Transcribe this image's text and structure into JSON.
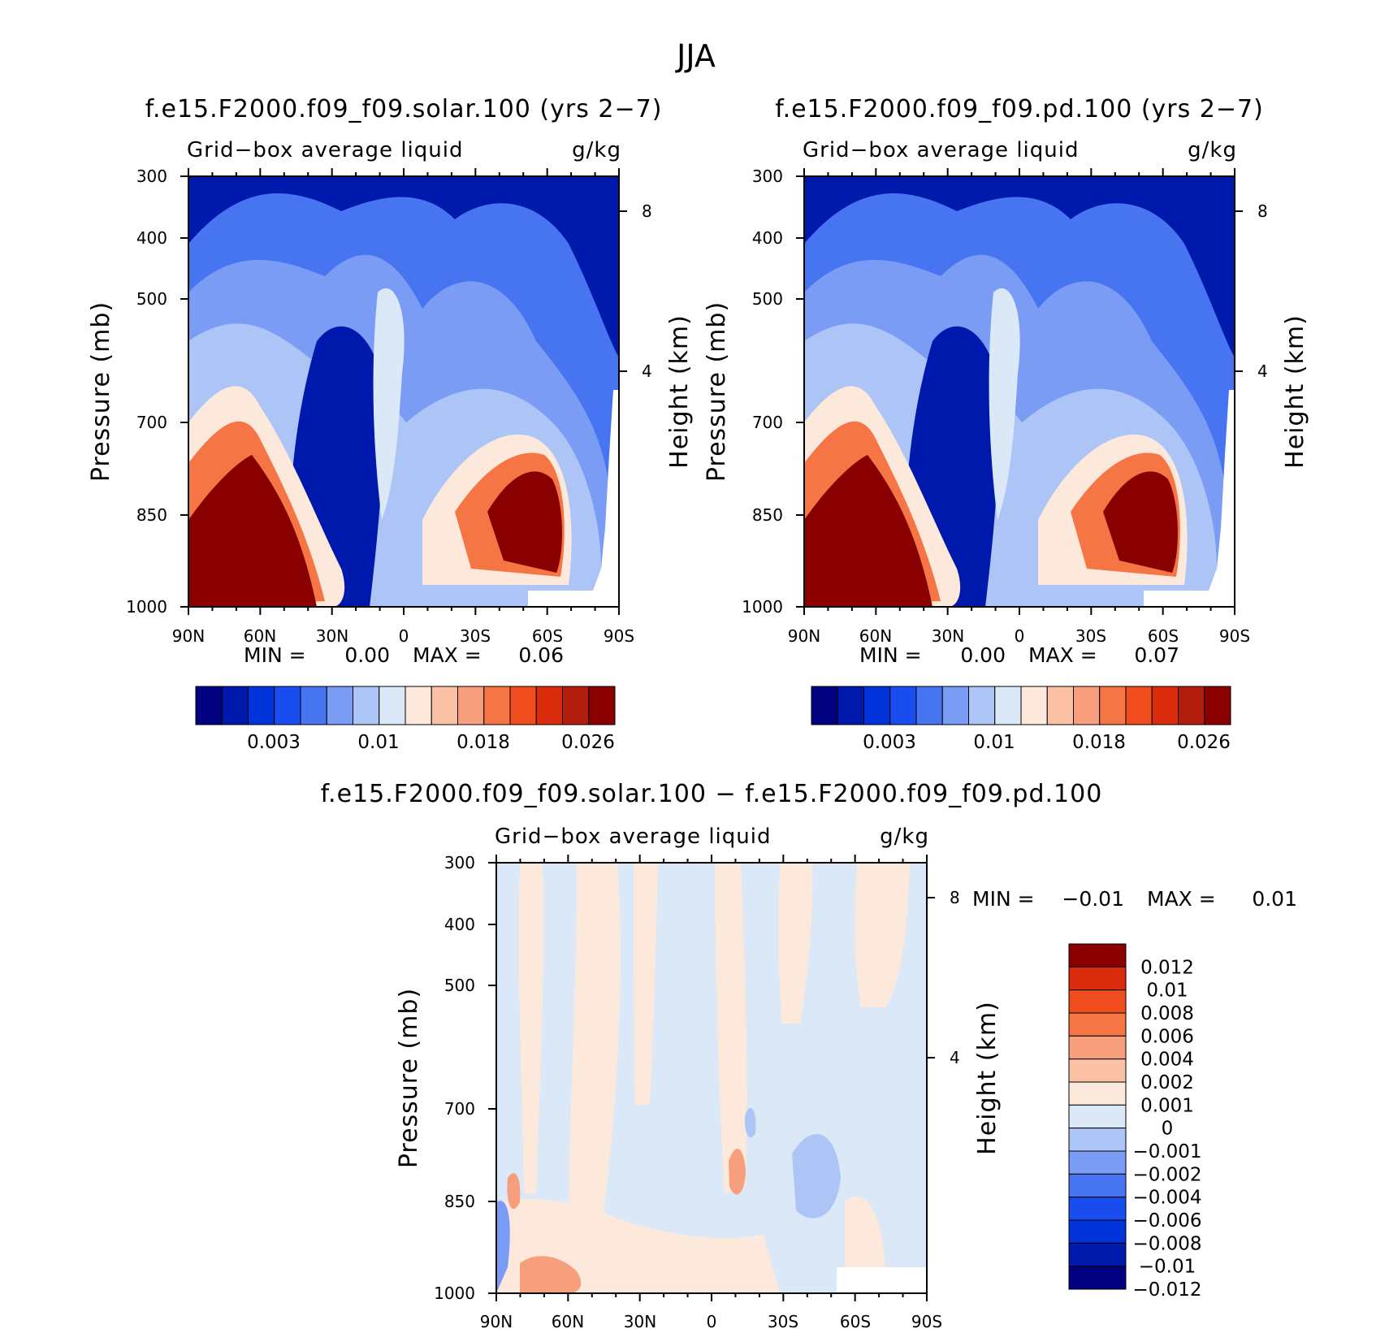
{
  "figure": {
    "title": "JJA"
  },
  "colors": {
    "main_scale": [
      "#000080",
      "#0019ad",
      "#0033d9",
      "#1a4df0",
      "#4775f2",
      "#7b9cf5",
      "#adc4f7",
      "#dbe8f7",
      "#fce9db",
      "#fac1a5",
      "#f79f7c",
      "#f57545",
      "#f04d1f",
      "#db2b0d",
      "#b31d0d",
      "#8a0000"
    ],
    "diff_scale": [
      "#000080",
      "#0019ad",
      "#0033d9",
      "#1a4df0",
      "#4775f2",
      "#7b9cf5",
      "#adc4f7",
      "#dbe8f7",
      "#fce9db",
      "#fac1a5",
      "#f79f7c",
      "#f57545",
      "#f04d1f",
      "#db2b0d",
      "#8a0000"
    ]
  },
  "chart_data": [
    {
      "type": "heatmap",
      "id": "solar",
      "title": "f.e15.F2000.f09_f09.solar.100 (yrs 2−7)",
      "subtitle_left": "Grid−box average liquid",
      "subtitle_right": "g/kg",
      "ylabel": "Pressure (mb)",
      "ylabel_right": "Height (km)",
      "x_ticks": [
        "90N",
        "60N",
        "30N",
        "0",
        "30S",
        "60S",
        "90S"
      ],
      "y_ticks": [
        "300",
        "400",
        "500",
        "700",
        "850",
        "1000"
      ],
      "y_ticks_right": [
        "8",
        "4"
      ],
      "ylim": [
        300,
        1000
      ],
      "stats": {
        "min_label": "MIN =",
        "min": "0.00",
        "max_label": "MAX =",
        "max": "0.06"
      },
      "colorbar_labels": [
        "0.003",
        "0.01",
        "0.018",
        "0.026"
      ]
    },
    {
      "type": "heatmap",
      "id": "pd",
      "title": "f.e15.F2000.f09_f09.pd.100 (yrs 2−7)",
      "subtitle_left": "Grid−box average liquid",
      "subtitle_right": "g/kg",
      "ylabel": "Pressure (mb)",
      "ylabel_right": "Height (km)",
      "x_ticks": [
        "90N",
        "60N",
        "30N",
        "0",
        "30S",
        "60S",
        "90S"
      ],
      "y_ticks": [
        "300",
        "400",
        "500",
        "700",
        "850",
        "1000"
      ],
      "y_ticks_right": [
        "8",
        "4"
      ],
      "ylim": [
        300,
        1000
      ],
      "stats": {
        "min_label": "MIN =",
        "min": "0.00",
        "max_label": "MAX =",
        "max": "0.07"
      },
      "colorbar_labels": [
        "0.003",
        "0.01",
        "0.018",
        "0.026"
      ]
    },
    {
      "type": "heatmap",
      "id": "diff",
      "title": "f.e15.F2000.f09_f09.solar.100 − f.e15.F2000.f09_f09.pd.100",
      "subtitle_left": "Grid−box average liquid",
      "subtitle_right": "g/kg",
      "ylabel": "Pressure (mb)",
      "ylabel_right": "Height (km)",
      "x_ticks": [
        "90N",
        "60N",
        "30N",
        "0",
        "30S",
        "60S",
        "90S"
      ],
      "y_ticks": [
        "300",
        "400",
        "500",
        "700",
        "850",
        "1000"
      ],
      "y_ticks_right": [
        "8",
        "4"
      ],
      "ylim": [
        300,
        1000
      ],
      "stats": {
        "min_label": "MIN =",
        "min": "−0.01",
        "max_label": "MAX =",
        "max": "0.01"
      },
      "colorbar_labels": [
        "0.012",
        "0.01",
        "0.008",
        "0.006",
        "0.004",
        "0.002",
        "0.001",
        "0",
        "−0.001",
        "−0.002",
        "−0.004",
        "−0.006",
        "−0.008",
        "−0.01",
        "−0.012"
      ]
    }
  ]
}
